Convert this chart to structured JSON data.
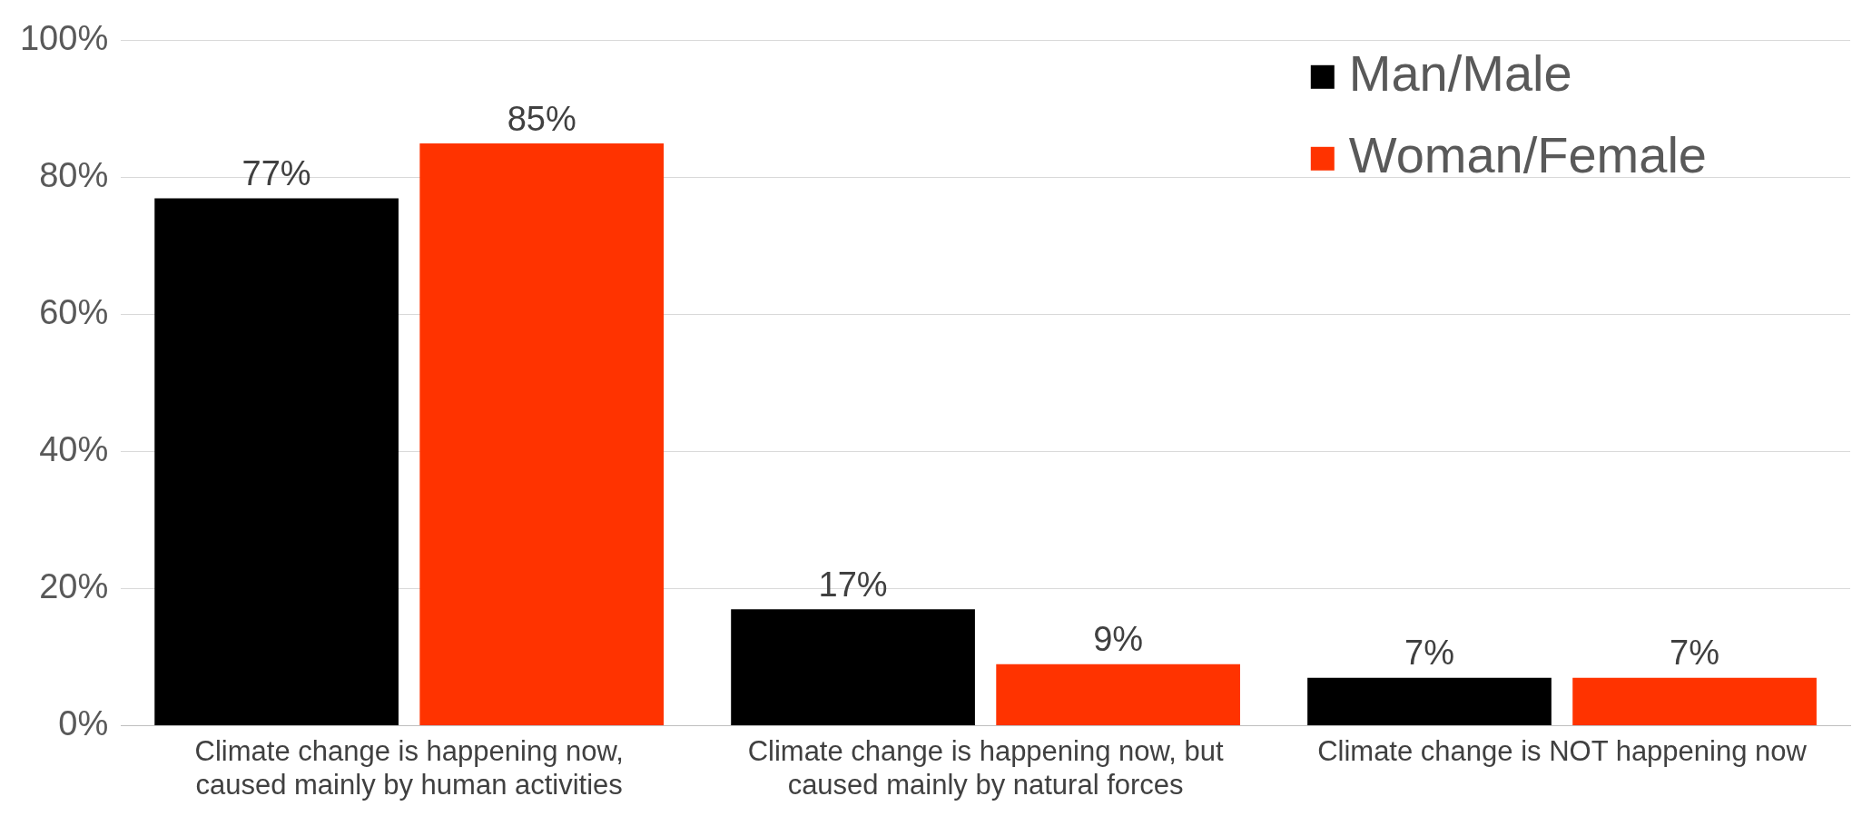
{
  "chart_data": {
    "type": "bar",
    "categories": [
      "Climate change is happening now, caused mainly by human activities",
      "Climate change is happening now, but caused mainly by natural forces",
      "Climate change is NOT happening now"
    ],
    "series": [
      {
        "name": "Man/Male",
        "color": "#000000",
        "values": [
          77,
          17,
          7
        ],
        "value_labels": [
          "77%",
          "17%",
          "7%"
        ]
      },
      {
        "name": "Woman/Female",
        "color": "#ff3300",
        "values": [
          85,
          9,
          7
        ],
        "value_labels": [
          "85%",
          "9%",
          "7%"
        ]
      }
    ],
    "ylim": [
      0,
      100
    ],
    "yticks": [
      {
        "value": 0,
        "label": "0%"
      },
      {
        "value": 20,
        "label": "20%"
      },
      {
        "value": 40,
        "label": "40%"
      },
      {
        "value": 60,
        "label": "60%"
      },
      {
        "value": 80,
        "label": "80%"
      },
      {
        "value": 100,
        "label": "100%"
      }
    ],
    "grid": "y",
    "legend": "top right"
  }
}
